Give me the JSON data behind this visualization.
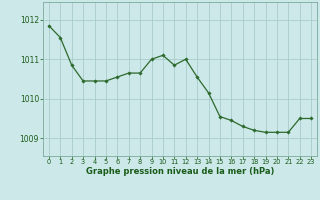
{
  "x": [
    0,
    1,
    2,
    3,
    4,
    5,
    6,
    7,
    8,
    9,
    10,
    11,
    12,
    13,
    14,
    15,
    16,
    17,
    18,
    19,
    20,
    21,
    22,
    23
  ],
  "y": [
    1011.85,
    1011.55,
    1010.85,
    1010.45,
    1010.45,
    1010.45,
    1010.55,
    1010.65,
    1010.65,
    1011.0,
    1011.1,
    1010.85,
    1011.0,
    1010.55,
    1010.15,
    1009.55,
    1009.45,
    1009.3,
    1009.2,
    1009.15,
    1009.15,
    1009.15,
    1009.5,
    1009.5
  ],
  "line_color": "#2d6a2d",
  "marker_color": "#2d6a2d",
  "bg_color": "#cce8e8",
  "grid_color": "#aacccc",
  "axis_label_color": "#1a5c1a",
  "tick_label_color": "#1a5c1a",
  "xlabel": "Graphe pression niveau de la mer (hPa)",
  "yticks": [
    1009,
    1010,
    1011,
    1012
  ],
  "xtick_labels": [
    "0",
    "1",
    "2",
    "3",
    "4",
    "5",
    "6",
    "7",
    "8",
    "9",
    "10",
    "11",
    "12",
    "13",
    "14",
    "15",
    "16",
    "17",
    "18",
    "19",
    "20",
    "21",
    "22",
    "23"
  ],
  "ylim": [
    1008.55,
    1012.45
  ],
  "xlim": [
    -0.5,
    23.5
  ]
}
